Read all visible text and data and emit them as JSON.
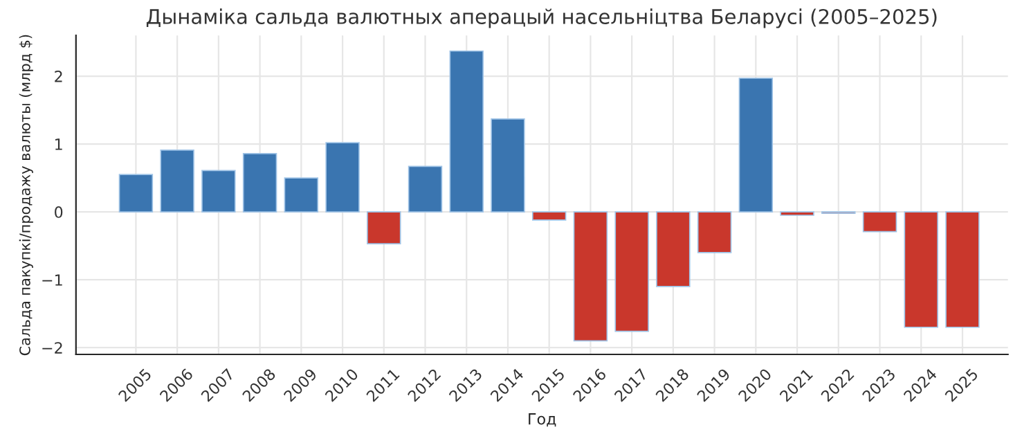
{
  "chart_data": {
    "type": "bar",
    "title": "Дынаміка сальда валютных аперацый насельніцтва Беларусі (2005–2025)",
    "xlabel": "Год",
    "ylabel": "Сальда пакупкі/продажу валюты (млрд $)",
    "categories": [
      "2005",
      "2006",
      "2007",
      "2008",
      "2009",
      "2010",
      "2011",
      "2012",
      "2013",
      "2014",
      "2015",
      "2016",
      "2017",
      "2018",
      "2019",
      "2020",
      "2021",
      "2022",
      "2023",
      "2024",
      "2025"
    ],
    "values": [
      0.55,
      0.91,
      0.61,
      0.86,
      0.5,
      1.02,
      -0.47,
      0.67,
      2.37,
      1.37,
      -0.12,
      -1.9,
      -1.76,
      -1.1,
      -0.6,
      1.97,
      -0.05,
      -0.02,
      -0.29,
      -1.7,
      -1.7
    ],
    "colors": [
      "#3a75b0",
      "#3a75b0",
      "#3a75b0",
      "#3a75b0",
      "#3a75b0",
      "#3a75b0",
      "#c9372c",
      "#3a75b0",
      "#3a75b0",
      "#3a75b0",
      "#c9372c",
      "#c9372c",
      "#c9372c",
      "#c9372c",
      "#c9372c",
      "#3a75b0",
      "#c9372c",
      "#c9372c",
      "#c9372c",
      "#c9372c",
      "#c9372c"
    ],
    "ylim": [
      -2.1,
      2.6
    ],
    "yticks": [
      {
        "value": -2,
        "label": "−2"
      },
      {
        "value": -1,
        "label": "−1"
      },
      0,
      1,
      2
    ],
    "grid": true
  }
}
